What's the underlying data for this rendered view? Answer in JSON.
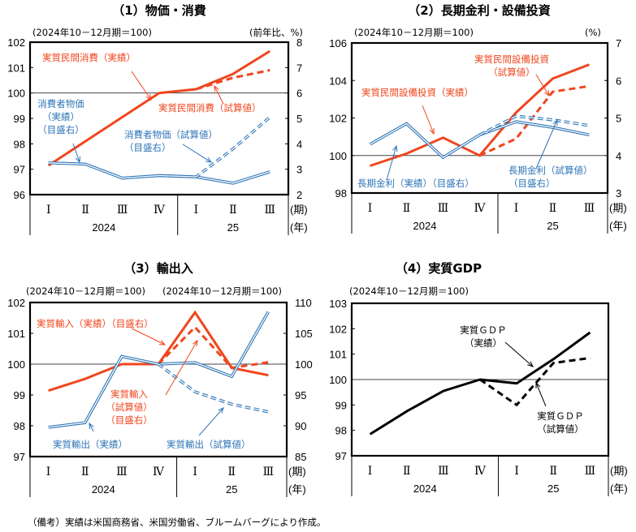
{
  "colors": {
    "red": "#f0461e",
    "blue": "#2e75b6",
    "black": "#000000",
    "gridline": "#555555"
  },
  "x_categories": [
    "I",
    "II",
    "III",
    "IV",
    "I",
    "II",
    "III"
  ],
  "x_roman": [
    "Ⅰ",
    "Ⅱ",
    "Ⅲ",
    "Ⅳ",
    "Ⅰ",
    "Ⅱ",
    "Ⅲ"
  ],
  "x_years": [
    "2024",
    "25"
  ],
  "x_unit_period": "(期)",
  "x_unit_year": "(年)",
  "footnote": "（備考）実績は米国商務省、米国労働省、ブルームバーグにより作成。",
  "chart_data": [
    {
      "type": "line",
      "title": "（1）物価・消費",
      "left_unit": "(2024年10－12月期＝100)",
      "right_unit": "(前年比、%)",
      "ylim_left": [
        96,
        102
      ],
      "ylim_right": [
        2,
        8
      ],
      "left_ticks": [
        "102",
        "101",
        "100",
        "99",
        "98",
        "97",
        "96"
      ],
      "right_ticks": [
        "8",
        "7",
        "6",
        "5",
        "4",
        "3",
        "2"
      ],
      "reference_line_left": 100,
      "series": [
        {
          "name": "実質民間消費（実績）",
          "axis": "left",
          "color": "red",
          "style": "solid",
          "values": [
            97.15,
            98.1,
            99.05,
            100.0,
            100.15,
            100.75,
            101.65
          ]
        },
        {
          "name": "実質民間消費（試算値）",
          "axis": "left",
          "color": "red",
          "style": "dashed",
          "values": [
            null,
            null,
            null,
            null,
            100.15,
            100.6,
            100.9
          ]
        },
        {
          "name": "消費者物価（実績）（目盛右）",
          "axis": "right",
          "color": "blue",
          "style": "double",
          "values": [
            3.25,
            3.2,
            2.65,
            2.75,
            2.7,
            2.45,
            2.9
          ]
        },
        {
          "name": "消費者物価（試算値）（目盛右）",
          "axis": "right",
          "color": "blue",
          "style": "double-dashed",
          "values": [
            null,
            null,
            null,
            2.75,
            2.7,
            3.8,
            5.05
          ]
        }
      ],
      "annotations": [
        {
          "lines": [
            "実質民間消費（実績）"
          ],
          "color": "red"
        },
        {
          "lines": [
            "実質民間消費（試算値）"
          ],
          "color": "red"
        },
        {
          "lines": [
            "消費者物価",
            "（実績）",
            "（目盛右）"
          ],
          "color": "blue"
        },
        {
          "lines": [
            "消費者物価（試算値）",
            "（目盛右）"
          ],
          "color": "blue"
        }
      ]
    },
    {
      "type": "line",
      "title": "（2）長期金利・設備投資",
      "left_unit": "(2024年10－12月期＝100)",
      "right_unit": "(%)",
      "ylim_left": [
        98,
        106
      ],
      "ylim_right": [
        3,
        7
      ],
      "left_ticks": [
        "106",
        "104",
        "102",
        "100",
        "98"
      ],
      "right_ticks": [
        "7",
        "6",
        "5",
        "4",
        "3"
      ],
      "reference_line_left": 100,
      "series": [
        {
          "name": "実質民間設備投資（実績）",
          "axis": "left",
          "color": "red",
          "style": "solid",
          "values": [
            99.45,
            100.1,
            100.95,
            100.0,
            102.3,
            104.1,
            104.85
          ]
        },
        {
          "name": "実質民間設備投資（試算値）",
          "axis": "left",
          "color": "red",
          "style": "dashed",
          "values": [
            null,
            null,
            null,
            100.0,
            100.9,
            103.4,
            103.7
          ]
        },
        {
          "name": "長期金利（実績）（目盛右）",
          "axis": "right",
          "color": "blue",
          "style": "double",
          "values": [
            4.3,
            4.85,
            3.95,
            4.55,
            4.9,
            4.75,
            4.55
          ]
        },
        {
          "name": "長期金利（試算値）（目盛右）",
          "axis": "right",
          "color": "blue",
          "style": "double-dashed",
          "values": [
            null,
            null,
            null,
            4.55,
            5.05,
            4.95,
            4.8
          ]
        }
      ],
      "annotations": [
        {
          "lines": [
            "実質民間設備投資",
            "（試算値）"
          ],
          "color": "red"
        },
        {
          "lines": [
            "実質民間設備投資（実績）"
          ],
          "color": "red"
        },
        {
          "lines": [
            "長期金利（実績）（目盛右）"
          ],
          "color": "blue"
        },
        {
          "lines": [
            "長期金利（試算値）",
            "（目盛右）"
          ],
          "color": "blue"
        }
      ]
    },
    {
      "type": "line",
      "title": "（3）輸出入",
      "left_unit": "(2024年10－12月期＝100)",
      "right_unit": "(2024年10－12月期＝100)",
      "ylim_left": [
        97,
        102
      ],
      "ylim_right": [
        85,
        110
      ],
      "left_ticks": [
        "102",
        "101",
        "100",
        "99",
        "98",
        "97"
      ],
      "right_ticks": [
        "110",
        "105",
        "100",
        "95",
        "90",
        "85"
      ],
      "reference_line_left": 100,
      "series": [
        {
          "name": "実質輸入（実績）（目盛右）",
          "axis": "right",
          "color": "red",
          "style": "solid",
          "values": [
            95.7,
            97.6,
            100.0,
            100.0,
            108.4,
            99.4,
            98.2
          ]
        },
        {
          "name": "実質輸入（試算値）（目盛右）",
          "axis": "right",
          "color": "red",
          "style": "dashed",
          "values": [
            null,
            null,
            null,
            100.0,
            106.0,
            99.4,
            100.3
          ]
        },
        {
          "name": "実質輸出（実績）",
          "axis": "left",
          "color": "blue",
          "style": "double",
          "values": [
            97.95,
            98.1,
            100.25,
            100.0,
            100.05,
            99.6,
            101.7
          ]
        },
        {
          "name": "実質輸出（試算値）",
          "axis": "left",
          "color": "blue",
          "style": "double-dashed",
          "values": [
            null,
            null,
            null,
            100.0,
            99.1,
            98.7,
            98.45
          ]
        }
      ],
      "annotations": [
        {
          "lines": [
            "実質輸入（実績）（目盛右）"
          ],
          "color": "red"
        },
        {
          "lines": [
            "実質輸入",
            "（試算値）",
            "（目盛右）"
          ],
          "color": "red"
        },
        {
          "lines": [
            "実質輸出（実績）"
          ],
          "color": "blue"
        },
        {
          "lines": [
            "実質輸出（試算値）"
          ],
          "color": "blue"
        }
      ]
    },
    {
      "type": "line",
      "title": "（4）実質GDP",
      "left_unit": "(2024年10－12月期＝100)",
      "ylim_left": [
        97,
        103
      ],
      "left_ticks": [
        "103",
        "102",
        "101",
        "100",
        "99",
        "98",
        "97"
      ],
      "reference_line_left": 100,
      "series": [
        {
          "name": "実質ＧＤＰ（実績）",
          "axis": "left",
          "color": "black",
          "style": "solid",
          "values": [
            97.85,
            98.75,
            99.55,
            100.0,
            99.85,
            100.8,
            101.85
          ]
        },
        {
          "name": "実質ＧＤＰ（試算値）",
          "axis": "left",
          "color": "black",
          "style": "dashed",
          "values": [
            null,
            null,
            null,
            100.0,
            99.0,
            100.65,
            100.85
          ]
        }
      ],
      "annotations": [
        {
          "lines": [
            "実質ＧＤＰ",
            "（実績）"
          ],
          "color": "black"
        },
        {
          "lines": [
            "実質ＧＤＰ",
            "（試算値）"
          ],
          "color": "black"
        }
      ]
    }
  ]
}
